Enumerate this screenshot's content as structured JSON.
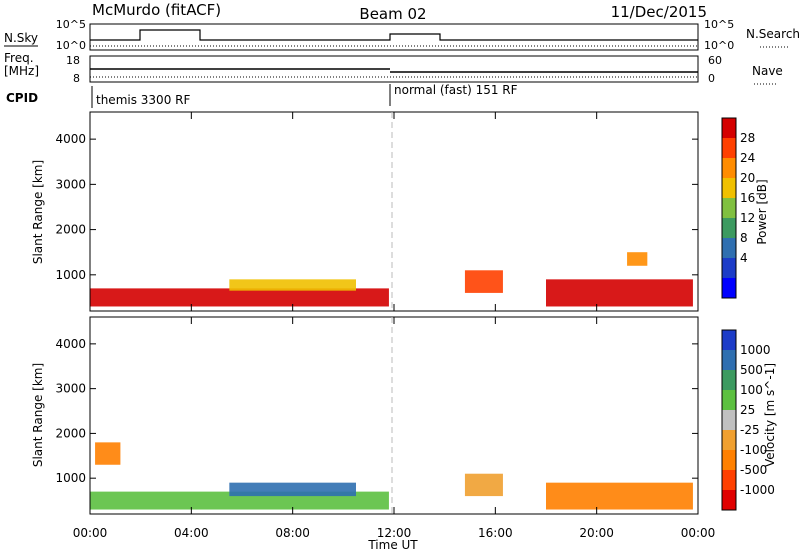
{
  "header": {
    "station": "McMurdo (fitACF)",
    "beam": "Beam 02",
    "date": "11/Dec/2015"
  },
  "top_panels": {
    "nsky_label": "N.Sky",
    "nsky_ticks": [
      "10^5",
      "10^0"
    ],
    "nsearch_label": "N.Search",
    "nsearch_ticks": [
      "10^5",
      "10^0"
    ],
    "freq_label": "Freq.",
    "freq_unit": "[MHz]",
    "freq_ticks": [
      "18",
      "8"
    ],
    "nave_label": "Nave",
    "nave_ticks": [
      "60",
      "0"
    ],
    "cpid_label": "CPID",
    "cpid_segments": [
      "themis 3300 RF",
      "normal (fast) 151 RF"
    ]
  },
  "chart_data": [
    {
      "type": "heatmap",
      "name": "power",
      "xlabel": "",
      "ylabel": "Slant Range [km]",
      "x_range_hours": [
        0,
        24
      ],
      "ylim": [
        200,
        4600
      ],
      "y_ticks": [
        "1000",
        "2000",
        "3000",
        "4000"
      ],
      "colorbar": {
        "label": "Power [dB]",
        "ticks": [
          "28",
          "24",
          "20",
          "16",
          "12",
          "8",
          "4"
        ],
        "colors": [
          "#d40000",
          "#ff4000",
          "#ff8c00",
          "#f0c000",
          "#80c040",
          "#3c9a60",
          "#2f6fb0",
          "#1c3cc8",
          "#0000ff"
        ]
      },
      "regions": [
        {
          "t0": 0,
          "t1": 11.8,
          "r0": 300,
          "r1": 700,
          "level": "28"
        },
        {
          "t0": 5.5,
          "t1": 10.5,
          "r0": 650,
          "r1": 900,
          "level": "16"
        },
        {
          "t0": 14.8,
          "t1": 16.3,
          "r0": 600,
          "r1": 1100,
          "level": "24"
        },
        {
          "t0": 18.0,
          "t1": 23.8,
          "r0": 300,
          "r1": 900,
          "level": "28"
        },
        {
          "t0": 21.2,
          "t1": 22.0,
          "r0": 1200,
          "r1": 1500,
          "level": "20"
        }
      ]
    },
    {
      "type": "heatmap",
      "name": "velocity",
      "xlabel": "Time UT",
      "ylabel": "Slant Range [km]",
      "x_range_hours": [
        0,
        24
      ],
      "x_ticks": [
        "00:00",
        "04:00",
        "08:00",
        "12:00",
        "16:00",
        "20:00",
        "00:00"
      ],
      "ylim": [
        200,
        4600
      ],
      "y_ticks": [
        "1000",
        "2000",
        "3000",
        "4000"
      ],
      "colorbar": {
        "label": "Velocity [m s^-1]",
        "ticks": [
          "1000",
          "500",
          "100",
          "25",
          "-25",
          "-100",
          "-500",
          "-1000"
        ],
        "colors": [
          "#1c3cc8",
          "#2f6fb0",
          "#3c9a60",
          "#5cc040",
          "#c0c0c0",
          "#f0a030",
          "#ff8000",
          "#ff4000",
          "#e00000"
        ]
      },
      "regions": [
        {
          "t0": 0,
          "t1": 11.8,
          "r0": 300,
          "r1": 700,
          "level": "25"
        },
        {
          "t0": 5.5,
          "t1": 10.5,
          "r0": 600,
          "r1": 900,
          "level": "500"
        },
        {
          "t0": 14.8,
          "t1": 16.3,
          "r0": 600,
          "r1": 1100,
          "level": "-100"
        },
        {
          "t0": 18.0,
          "t1": 23.8,
          "r0": 300,
          "r1": 900,
          "level": "-500"
        },
        {
          "t0": 0.2,
          "t1": 1.2,
          "r0": 1300,
          "r1": 1800,
          "level": "-500"
        }
      ]
    }
  ]
}
